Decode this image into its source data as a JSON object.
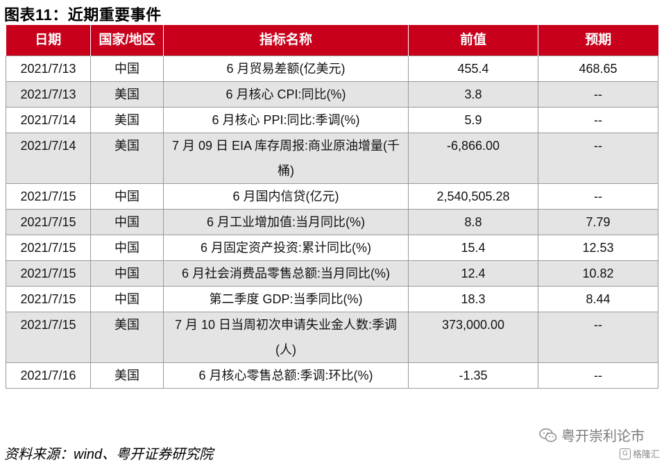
{
  "title": "图表11：近期重要事件",
  "table": {
    "headers": [
      "日期",
      "国家/地区",
      "指标名称",
      "前值",
      "预期"
    ],
    "rows": [
      [
        "2021/7/13",
        "中国",
        "6 月贸易差额(亿美元)",
        "455.4",
        "468.65"
      ],
      [
        "2021/7/13",
        "美国",
        "6 月核心 CPI:同比(%)",
        "3.8",
        "--"
      ],
      [
        "2021/7/14",
        "美国",
        "6 月核心 PPI:同比:季调(%)",
        "5.9",
        "--"
      ],
      [
        "2021/7/14",
        "美国",
        "7 月 09 日 EIA 库存周报:商业原油增量(千桶)",
        "-6,866.00",
        "--"
      ],
      [
        "2021/7/15",
        "中国",
        "6 月国内信贷(亿元)",
        "2,540,505.28",
        "--"
      ],
      [
        "2021/7/15",
        "中国",
        "6 月工业增加值:当月同比(%)",
        "8.8",
        "7.79"
      ],
      [
        "2021/7/15",
        "中国",
        "6 月固定资产投资:累计同比(%)",
        "15.4",
        "12.53"
      ],
      [
        "2021/7/15",
        "中国",
        "6 月社会消费品零售总额:当月同比(%)",
        "12.4",
        "10.82"
      ],
      [
        "2021/7/15",
        "中国",
        "第二季度 GDP:当季同比(%)",
        "18.3",
        "8.44"
      ],
      [
        "2021/7/15",
        "美国",
        "7 月 10 日当周初次申请失业金人数:季调(人)",
        "373,000.00",
        "--"
      ],
      [
        "2021/7/16",
        "美国",
        "6 月核心零售总额:季调:环比(%)",
        "-1.35",
        "--"
      ]
    ]
  },
  "source": "资料来源：wind、粤开证券研究院",
  "watermark": "粤开崇利论市",
  "logo_text": "格隆汇",
  "logo_mark": "G",
  "colors": {
    "header_bg": "#c8001b",
    "stripe": "#e4e4e4"
  }
}
